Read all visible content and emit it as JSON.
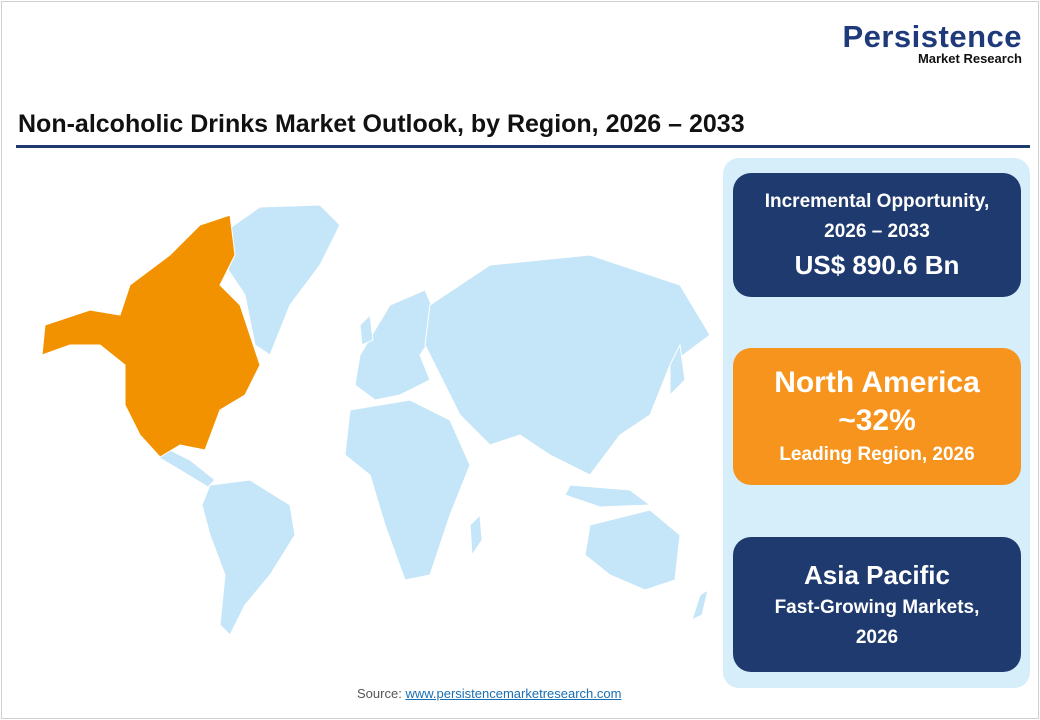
{
  "logo": {
    "line1": "Persistence",
    "line2": "Market Research"
  },
  "title": "Non-alcoholic Drinks Market Outlook, by Region, 2026 – 2033",
  "map": {
    "highlighted_region": "North America",
    "highlight_color": "#f39200",
    "base_color": "#c5e6f8"
  },
  "cards": [
    {
      "line1": "Incremental Opportunity,",
      "line2": "2026 – 2033",
      "line3": "US$ 890.6 Bn",
      "color": "#1f3a6e"
    },
    {
      "line1": "North America",
      "line2": "~32%",
      "line3": "Leading Region, 2026",
      "color": "#f7941d"
    },
    {
      "line1": "Asia Pacific",
      "line2": "Fast-Growing Markets,",
      "line3": "2026",
      "color": "#1f3a6e"
    }
  ],
  "source": {
    "label": "Source:",
    "link": "www.persistencemarketresearch.com"
  }
}
